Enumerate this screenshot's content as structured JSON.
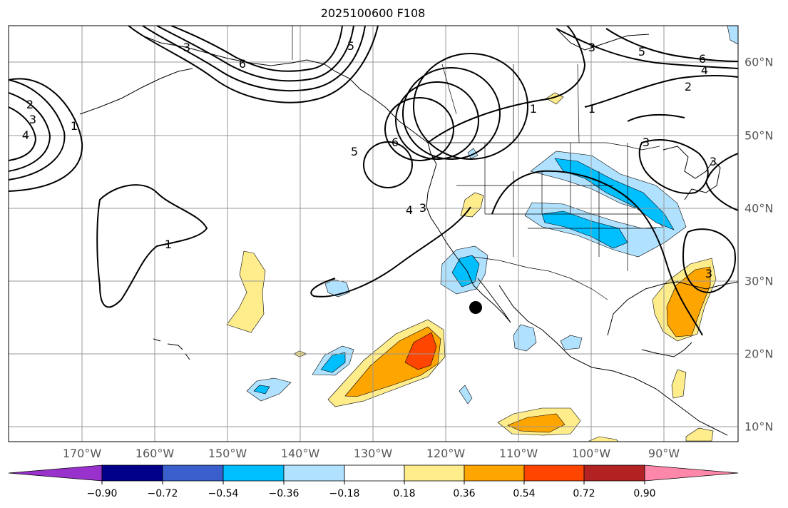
{
  "title": "2025100600 F108",
  "map": {
    "lon_labels": [
      "170°W",
      "160°W",
      "150°W",
      "140°W",
      "130°W",
      "120°W",
      "110°W",
      "100°W",
      "90°W"
    ],
    "lat_labels": [
      "60°N",
      "50°N",
      "40°N",
      "30°N",
      "20°N",
      "10°N"
    ],
    "contour_color": "#000000",
    "grid_color": "#999999",
    "contour_labels": [
      "3",
      "5",
      "6",
      "2",
      "3",
      "4",
      "1",
      "5",
      "6",
      "4",
      "3",
      "1",
      "3",
      "5",
      "6",
      "4",
      "2",
      "1",
      "3",
      "3",
      "1",
      "3"
    ],
    "marker": "black-dot"
  },
  "colorbar": {
    "tick_labels": [
      "−0.90",
      "−0.72",
      "−0.54",
      "−0.36",
      "−0.18",
      "0.18",
      "0.36",
      "0.54",
      "0.72",
      "0.90"
    ],
    "colors": [
      "#9932cc",
      "#00008b",
      "#3a5fcd",
      "#00bfff",
      "#b0e2ff",
      "#ffffff",
      "#ffec8b",
      "#ffa500",
      "#ff4500",
      "#b22222",
      "#ff88aa"
    ]
  }
}
